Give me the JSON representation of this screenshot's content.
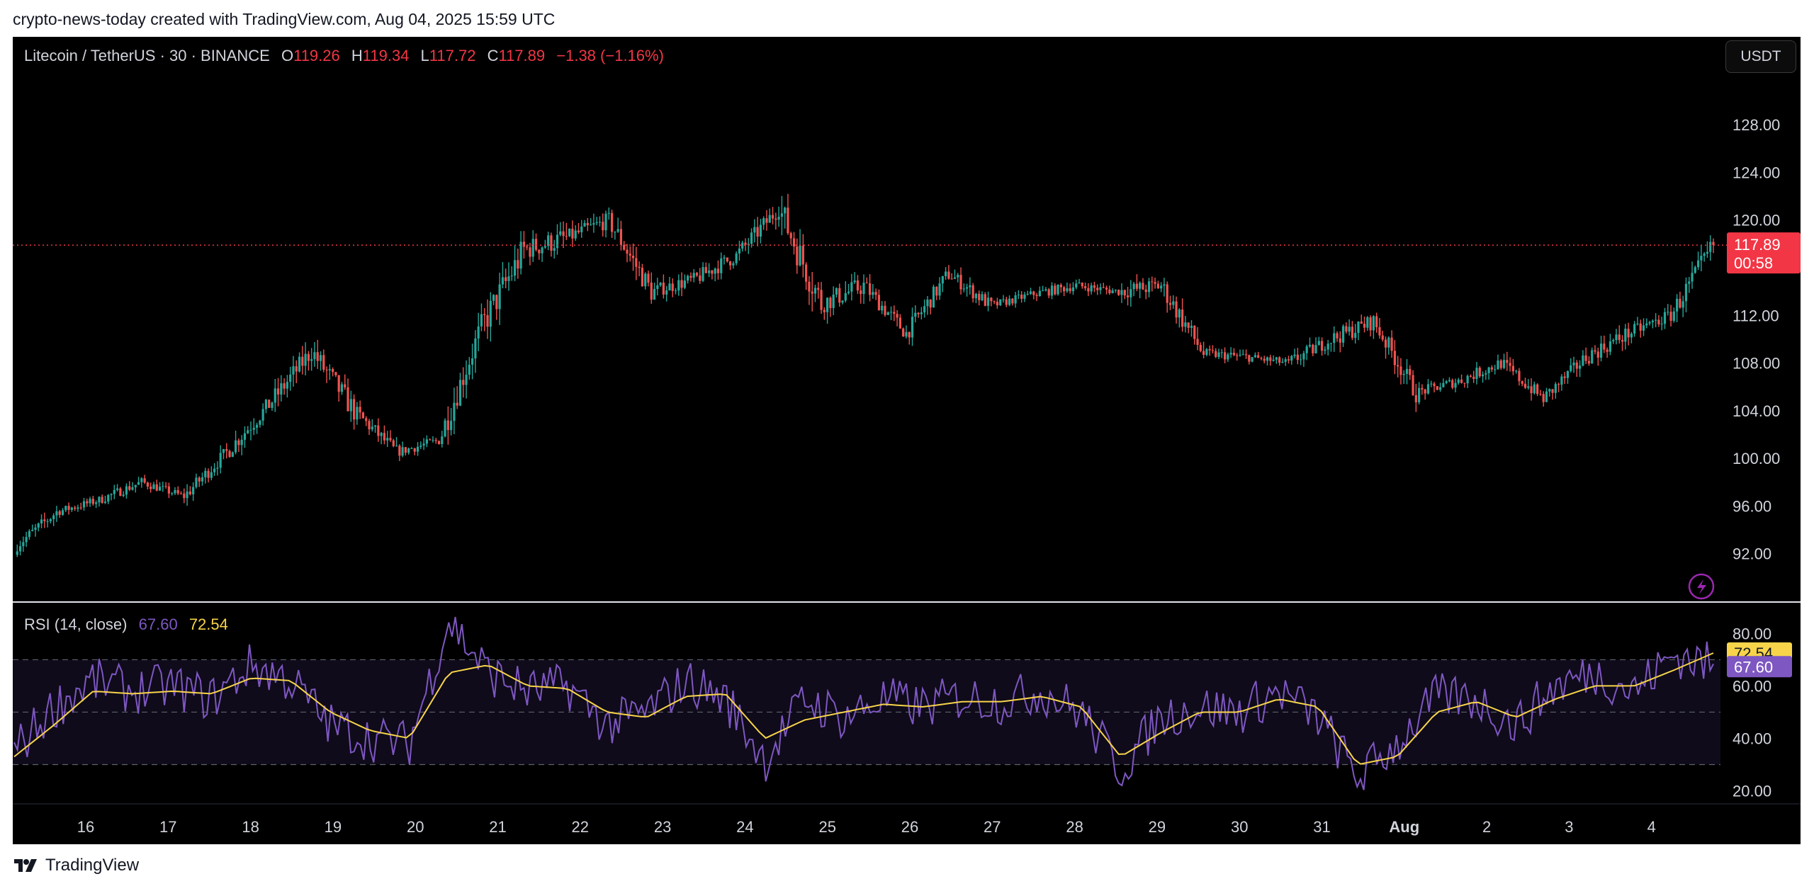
{
  "header": {
    "attribution": "crypto-news-today created with TradingView.com, Aug 04, 2025 15:59 UTC"
  },
  "legend": {
    "symbol": "Litecoin / TetherUS · 30 · BINANCE",
    "o_label": "O",
    "o_value": "119.26",
    "h_label": "H",
    "h_value": "119.34",
    "l_label": "L",
    "l_value": "117.72",
    "c_label": "C",
    "c_value": "117.89",
    "change": "−1.38 (−1.16%)"
  },
  "currency_button": "USDT",
  "price_badge": {
    "price": "117.89",
    "countdown": "00:58"
  },
  "rsi": {
    "label": "RSI (14, close)",
    "value": "67.60",
    "ma_value": "72.54"
  },
  "footer": {
    "brand": "TradingView"
  },
  "colors": {
    "up": "#26a69a",
    "down": "#ef5350",
    "rsi_line": "#7e57c2",
    "rsi_ma": "#f7d44a",
    "last_price": "#f23645",
    "background": "#000000"
  },
  "chart_data": [
    {
      "type": "candlestick",
      "title": "Litecoin / TetherUS · 30 · BINANCE",
      "ylim": [
        88,
        133
      ],
      "y_ticks": [
        92,
        96,
        100,
        104,
        108,
        112,
        116,
        120,
        124,
        128
      ],
      "y_tick_labels": [
        "92.00",
        "96.00",
        "100.00",
        "104.00",
        "108.00",
        "112.00",
        "",
        "120.00",
        "124.00",
        "128.00"
      ],
      "x_ticks": [
        "16",
        "17",
        "18",
        "19",
        "20",
        "21",
        "22",
        "23",
        "24",
        "25",
        "26",
        "27",
        "28",
        "29",
        "30",
        "31",
        "Aug",
        "2",
        "3",
        "4"
      ],
      "last_price": 117.89,
      "x": [
        "Jul 15 12:00",
        "Jul 16 00:00",
        "Jul 16 12:00",
        "Jul 17 00:00",
        "Jul 17 12:00",
        "Jul 18 00:00",
        "Jul 18 12:00",
        "Jul 19 00:00",
        "Jul 19 12:00",
        "Jul 20 00:00",
        "Jul 20 12:00",
        "Jul 21 00:00",
        "Jul 21 12:00",
        "Jul 22 00:00",
        "Jul 22 12:00",
        "Jul 23 00:00",
        "Jul 23 12:00",
        "Jul 24 00:00",
        "Jul 24 12:00",
        "Jul 25 00:00",
        "Jul 25 12:00",
        "Jul 26 00:00",
        "Jul 26 12:00",
        "Jul 27 00:00",
        "Jul 27 12:00",
        "Jul 28 00:00",
        "Jul 28 12:00",
        "Jul 29 00:00",
        "Jul 29 12:00",
        "Jul 30 00:00",
        "Jul 30 12:00",
        "Jul 31 00:00",
        "Jul 31 12:00",
        "Aug 1 00:00",
        "Aug 1 12:00",
        "Aug 2 00:00",
        "Aug 2 12:00",
        "Aug 3 00:00",
        "Aug 3 12:00",
        "Aug 4 00:00",
        "Aug 4 12:00"
      ],
      "close": [
        92.5,
        95.5,
        96.5,
        98.0,
        96.8,
        100.5,
        104.5,
        109.0,
        104.0,
        100.5,
        101.5,
        111.0,
        117.5,
        118.5,
        120.0,
        114.0,
        115.0,
        117.0,
        121.0,
        113.0,
        114.5,
        110.5,
        115.5,
        112.8,
        113.8,
        114.5,
        114.0,
        114.5,
        108.8,
        108.5,
        108.0,
        110.0,
        111.5,
        105.5,
        106.5,
        108.0,
        105.0,
        108.5,
        110.5,
        112.0,
        117.89
      ],
      "high": [
        93.5,
        96.8,
        97.5,
        99.5,
        98.5,
        102.0,
        106.5,
        111.5,
        106.5,
        102.0,
        104.0,
        113.0,
        120.5,
        121.0,
        122.0,
        118.0,
        116.5,
        119.5,
        122.2,
        116.0,
        116.0,
        114.5,
        116.5,
        114.5,
        115.0,
        116.0,
        115.5,
        116.5,
        111.0,
        110.5,
        109.5,
        111.5,
        112.5,
        108.5,
        108.5,
        110.0,
        110.5,
        110.0,
        112.0,
        114.5,
        119.6
      ],
      "low": [
        91.0,
        93.5,
        95.0,
        96.0,
        95.5,
        98.5,
        102.0,
        103.5,
        100.5,
        99.5,
        100.0,
        106.0,
        110.5,
        114.5,
        114.5,
        111.5,
        112.5,
        114.0,
        115.0,
        106.5,
        109.0,
        108.5,
        110.0,
        111.0,
        111.5,
        112.5,
        112.0,
        109.0,
        107.0,
        106.5,
        106.5,
        105.0,
        109.0,
        103.5,
        104.0,
        105.5,
        104.0,
        104.5,
        108.0,
        110.0,
        111.5
      ]
    },
    {
      "type": "line",
      "title": "RSI (14, close)",
      "ylim": [
        15,
        92
      ],
      "y_ticks": [
        20,
        40,
        60,
        80
      ],
      "y_tick_labels": [
        "20.00",
        "40.00",
        "60.00",
        "80.00"
      ],
      "bands": [
        30,
        50,
        70
      ],
      "series": [
        {
          "name": "RSI",
          "values": [
            35,
            52,
            62,
            58,
            60,
            55,
            68,
            62,
            45,
            40,
            38,
            85,
            65,
            58,
            60,
            45,
            50,
            62,
            55,
            32,
            55,
            48,
            55,
            52,
            56,
            54,
            58,
            50,
            28,
            48,
            52,
            50,
            58,
            48,
            25,
            38,
            56,
            55,
            45,
            60,
            65,
            58,
            72,
            67.6
          ]
        },
        {
          "name": "RSI-based MA",
          "values": [
            33,
            45,
            58,
            57,
            58,
            57,
            63,
            62,
            50,
            43,
            40,
            65,
            68,
            60,
            59,
            50,
            48,
            56,
            57,
            40,
            47,
            50,
            53,
            52,
            54,
            54,
            56,
            52,
            33,
            42,
            50,
            50,
            55,
            52,
            30,
            33,
            50,
            54,
            48,
            55,
            60,
            60,
            66,
            72.54
          ]
        }
      ]
    }
  ]
}
